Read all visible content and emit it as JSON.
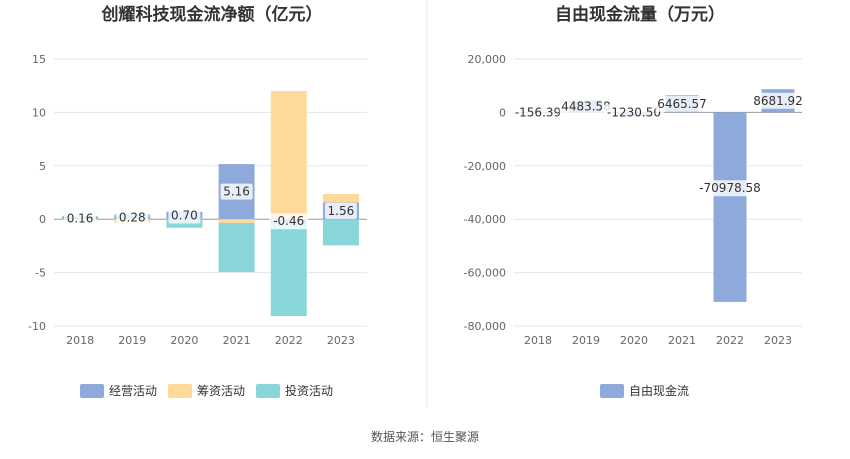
{
  "source_text": "数据来源：恒生聚源",
  "chart_data": [
    {
      "type": "bar",
      "stacked": true,
      "title": "创耀科技现金流净额（亿元）",
      "categories": [
        "2018",
        "2019",
        "2020",
        "2021",
        "2022",
        "2023"
      ],
      "ylim": [
        -10,
        15
      ],
      "yticks": [
        -10,
        -5,
        0,
        5,
        10,
        15
      ],
      "ytick_labels": [
        "-10",
        "-5",
        "0",
        "5",
        "10",
        "15"
      ],
      "series": [
        {
          "name": "经营活动",
          "color": "#8eaadb",
          "values": [
            0.16,
            0.28,
            0.7,
            5.16,
            -0.46,
            1.56
          ],
          "labels": [
            "0.16",
            "0.28",
            "0.70",
            "5.16",
            "-0.46",
            "1.56"
          ]
        },
        {
          "name": "筹资活动",
          "color": "#ffd99a",
          "values": [
            -0.06,
            -0.3,
            0,
            -0.35,
            12.0,
            0.8
          ]
        },
        {
          "name": "投资活动",
          "color": "#88d6da",
          "values": [
            0.15,
            0.2,
            -0.8,
            -4.6,
            -8.6,
            -2.45
          ]
        }
      ],
      "legend_position": "bottom"
    },
    {
      "type": "bar",
      "title": "自由现金流量（万元）",
      "categories": [
        "2018",
        "2019",
        "2020",
        "2021",
        "2022",
        "2023"
      ],
      "ylim": [
        -80000,
        20000
      ],
      "yticks": [
        -80000,
        -60000,
        -40000,
        -20000,
        0,
        20000
      ],
      "ytick_labels": [
        "-80,000",
        "-60,000",
        "-40,000",
        "-20,000",
        "0",
        "20,000"
      ],
      "series": [
        {
          "name": "自由现金流",
          "color": "#8eaadb",
          "values": [
            -156.39,
            4483.58,
            -1230.5,
            6465.57,
            -70978.58,
            8681.92
          ],
          "labels": [
            "-156.39",
            "4483.58",
            "-1230.50",
            "6465.57",
            "-70978.58",
            "8681.92"
          ]
        }
      ],
      "legend_position": "bottom"
    }
  ]
}
